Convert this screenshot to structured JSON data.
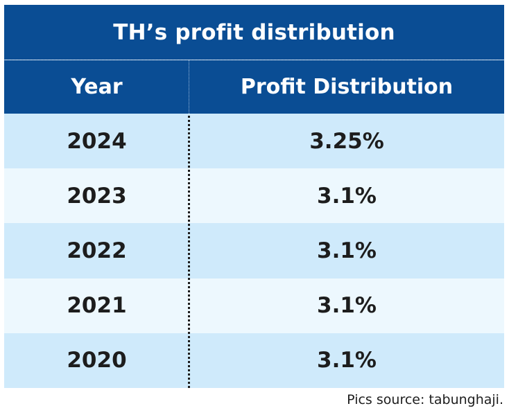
{
  "title": "TH’s profit distribution",
  "headers": {
    "year": "Year",
    "distribution": "Profit Distribution"
  },
  "rows": [
    {
      "year": "2024",
      "distribution": "3.25%"
    },
    {
      "year": "2023",
      "distribution": "3.1%"
    },
    {
      "year": "2022",
      "distribution": "3.1%"
    },
    {
      "year": "2021",
      "distribution": "3.1%"
    },
    {
      "year": "2020",
      "distribution": "3.1%"
    }
  ],
  "source": "Pics source: tabunghaji.",
  "colors": {
    "header_bg": "#0a4d94",
    "row_odd_bg": "#cfeafb",
    "row_even_bg": "#edf8fe",
    "text": "#1d1d1d"
  },
  "chart_data": {
    "type": "table",
    "title": "TH’s profit distribution",
    "columns": [
      "Year",
      "Profit Distribution"
    ],
    "rows": [
      [
        "2024",
        "3.25%"
      ],
      [
        "2023",
        "3.1%"
      ],
      [
        "2022",
        "3.1%"
      ],
      [
        "2021",
        "3.1%"
      ],
      [
        "2020",
        "3.1%"
      ]
    ]
  }
}
